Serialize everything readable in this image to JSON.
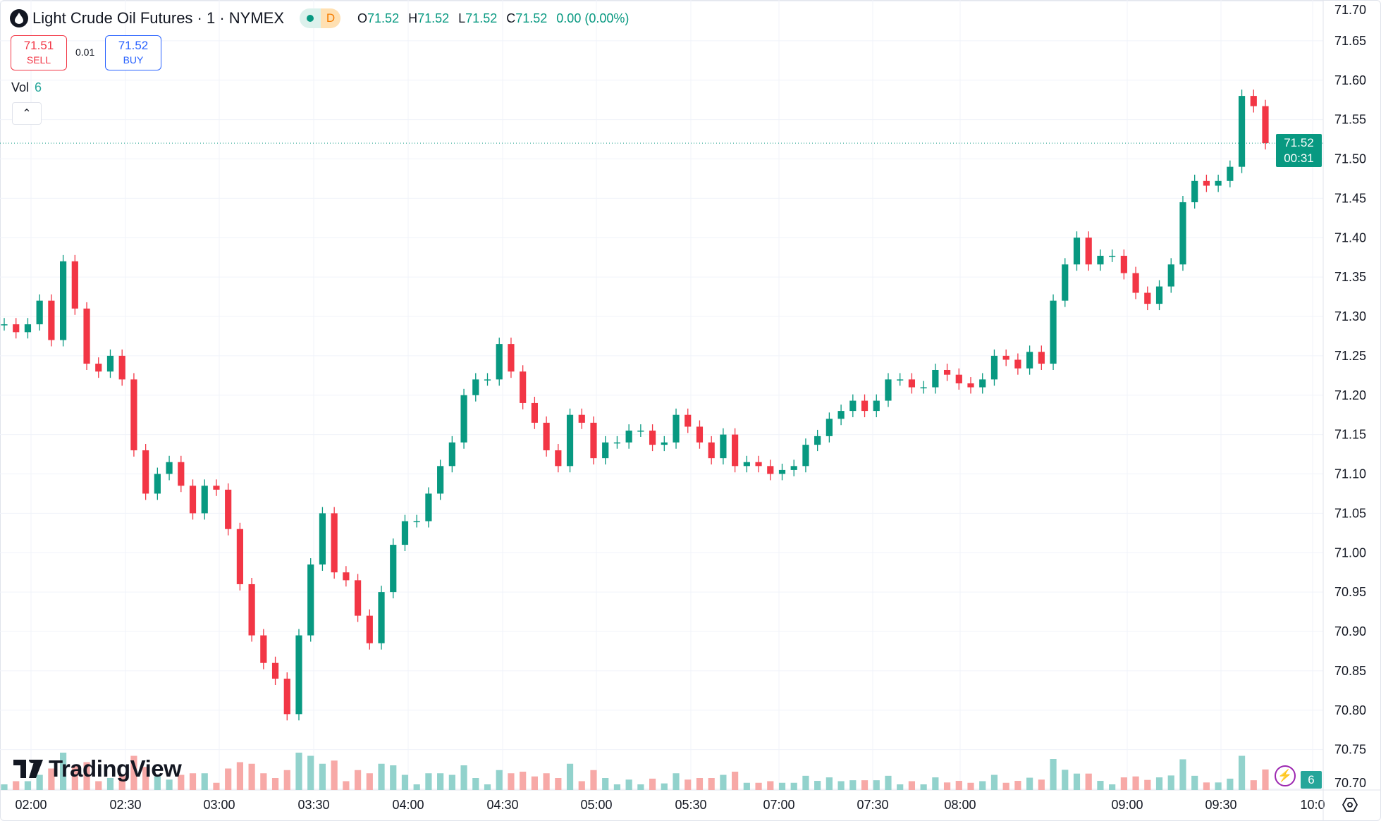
{
  "legend": {
    "symbol_title": "Light Crude Oil Futures · 1 · NYMEX",
    "market_status": "D",
    "ohlc": {
      "o_label": "O",
      "o": "71.52",
      "h_label": "H",
      "h": "71.52",
      "l_label": "L",
      "l": "71.52",
      "c_label": "C",
      "c": "71.52",
      "change": "0.00 (0.00%)"
    }
  },
  "trade": {
    "sell_price": "71.51",
    "sell_label": "SELL",
    "spread": "0.01",
    "buy_price": "71.52",
    "buy_label": "BUY"
  },
  "volume_indicator": {
    "label": "Vol",
    "value": "6"
  },
  "last_price": {
    "price": "71.52",
    "countdown": "00:31"
  },
  "volume_tag": "6",
  "brand": "TradingView",
  "colors": {
    "up": "#089981",
    "down": "#f23645",
    "vol_up": "#92d2cc",
    "vol_down": "#f7a9a7"
  },
  "chart_data": {
    "type": "candlestick",
    "timeframe": "1",
    "y_ticks": [
      "71.70",
      "71.65",
      "71.60",
      "71.55",
      "71.50",
      "71.45",
      "71.40",
      "71.35",
      "71.30",
      "71.25",
      "71.20",
      "71.15",
      "71.10",
      "71.05",
      "71.00",
      "70.95",
      "70.90",
      "70.85",
      "70.80",
      "70.75",
      "70.70"
    ],
    "x_ticks": [
      "02:00",
      "02:30",
      "03:00",
      "03:30",
      "04:00",
      "04:30",
      "05:00",
      "05:30",
      "07:00",
      "07:30",
      "08:00",
      "09:00",
      "09:30",
      "10:0"
    ],
    "ylim": [
      70.7,
      71.7
    ],
    "grid": true,
    "closes": [
      71.29,
      71.28,
      71.29,
      71.32,
      71.27,
      71.37,
      71.31,
      71.24,
      71.23,
      71.25,
      71.22,
      71.13,
      71.075,
      71.1,
      71.115,
      71.085,
      71.05,
      71.085,
      71.08,
      71.03,
      70.96,
      70.895,
      70.86,
      70.84,
      70.795,
      70.895,
      70.985,
      71.05,
      70.975,
      70.965,
      70.92,
      70.885,
      70.95,
      71.01,
      71.04,
      71.04,
      71.075,
      71.11,
      71.14,
      71.2,
      71.22,
      71.22,
      71.265,
      71.23,
      71.19,
      71.165,
      71.13,
      71.11,
      71.175,
      71.165,
      71.12,
      71.14,
      71.14,
      71.155,
      71.155,
      71.137,
      71.14,
      71.175,
      71.16,
      71.14,
      71.12,
      71.15,
      71.11,
      71.115,
      71.11,
      71.1,
      71.105,
      71.11,
      71.137,
      71.148,
      71.17,
      71.18,
      71.193,
      71.18,
      71.193,
      71.22,
      71.22,
      71.21,
      71.21,
      71.232,
      71.226,
      71.215,
      71.21,
      71.22,
      71.25,
      71.245,
      71.234,
      71.255,
      71.24,
      71.32,
      71.366,
      71.4,
      71.366,
      71.377,
      71.377,
      71.355,
      71.33,
      71.316,
      71.338,
      71.366,
      71.445,
      71.472,
      71.466,
      71.472,
      71.49,
      71.58,
      71.567,
      71.52
    ]
  }
}
